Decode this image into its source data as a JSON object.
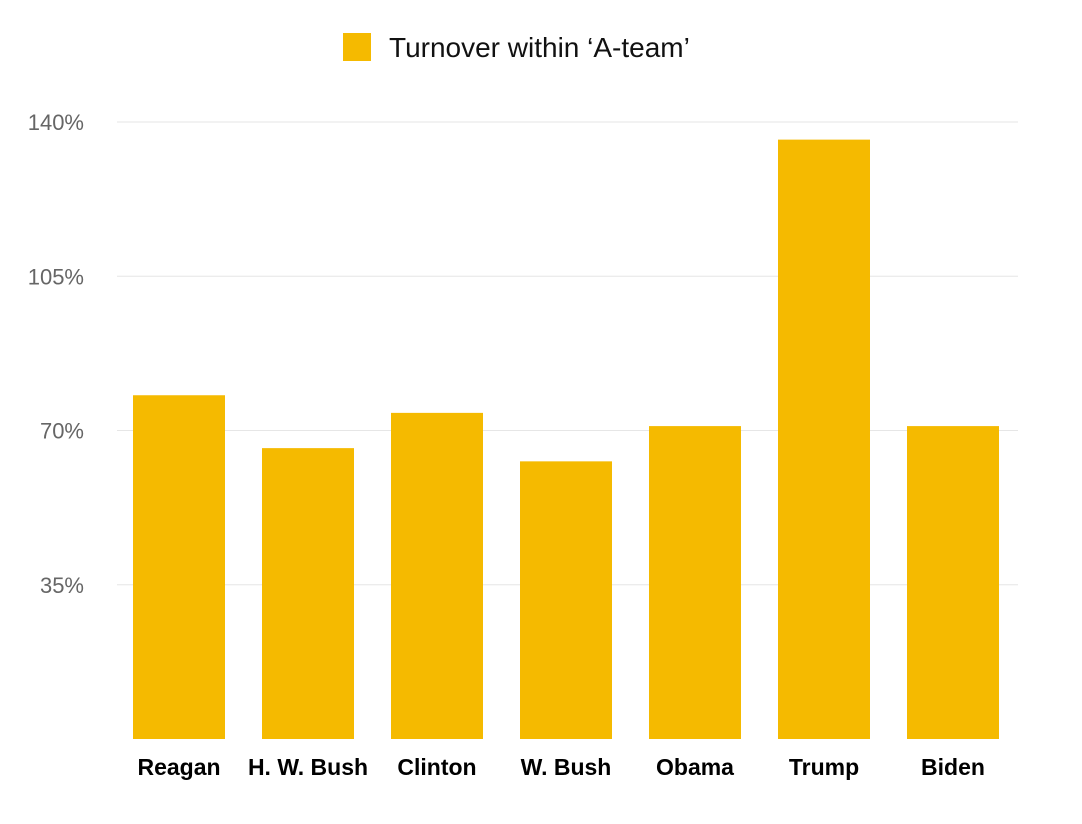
{
  "chart_data": {
    "type": "bar",
    "categories": [
      "Reagan",
      "H. W. Bush",
      "Clinton",
      "W. Bush",
      "Obama",
      "Trump",
      "Biden"
    ],
    "series": [
      {
        "name": "Turnover within ‘A-team’",
        "values": [
          78,
          66,
          74,
          63,
          71,
          136,
          71
        ]
      }
    ],
    "ylim": [
      0,
      140
    ],
    "yticks": [
      35,
      70,
      105,
      140
    ],
    "ytick_labels": [
      "35%",
      "70%",
      "105%",
      "140%"
    ],
    "legend_position": "top-center",
    "grid": true,
    "colors": {
      "bar": "#F5BA00",
      "grid": "#e6e6e6",
      "tick_text": "#666666",
      "category_text": "#000000"
    }
  }
}
